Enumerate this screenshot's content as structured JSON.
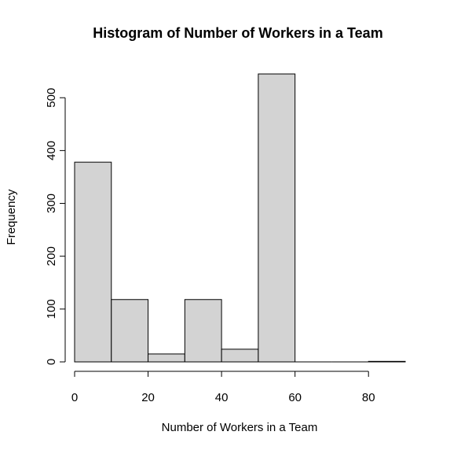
{
  "chart_data": {
    "type": "bar",
    "title": "Histogram of Number of Workers in a Team",
    "xlabel": "Number of Workers in a Team",
    "ylabel": "Frequency",
    "bin_edges": [
      0,
      10,
      20,
      30,
      40,
      50,
      60,
      70,
      80,
      90
    ],
    "values": [
      378,
      118,
      15,
      118,
      24,
      545,
      0,
      0,
      1
    ],
    "x_ticks": [
      0,
      20,
      40,
      60,
      80
    ],
    "y_ticks": [
      0,
      100,
      200,
      300,
      400,
      500
    ],
    "xlim": [
      0,
      90
    ],
    "ylim": [
      0,
      545
    ],
    "bar_fill": "#d3d3d3",
    "bar_stroke": "#000000",
    "grid": false,
    "legend": "none"
  }
}
